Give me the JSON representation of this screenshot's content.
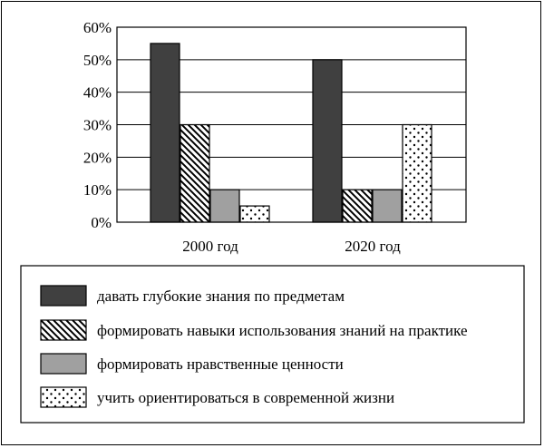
{
  "chart_data": {
    "type": "bar",
    "categories": [
      "2000 год",
      "2020 год"
    ],
    "yticks": [
      "0%",
      "10%",
      "20%",
      "30%",
      "40%",
      "50%",
      "60%"
    ],
    "ylim": [
      0,
      60
    ],
    "grid": true,
    "legend_position": "bottom",
    "series": [
      {
        "name": "давать глубокие знания по предметам",
        "values": [
          55,
          50
        ],
        "fill": "dark",
        "color": "#404040"
      },
      {
        "name": "формировать навыки использования знаний на практике",
        "values": [
          30,
          10
        ],
        "fill": "hatch",
        "color": "#000000"
      },
      {
        "name": "формировать нравственные ценности",
        "values": [
          10,
          10
        ],
        "fill": "gray",
        "color": "#a0a0a0"
      },
      {
        "name": "учить ориентироваться в современной жизни",
        "values": [
          5,
          30
        ],
        "fill": "dots",
        "color": "#000000"
      }
    ]
  }
}
